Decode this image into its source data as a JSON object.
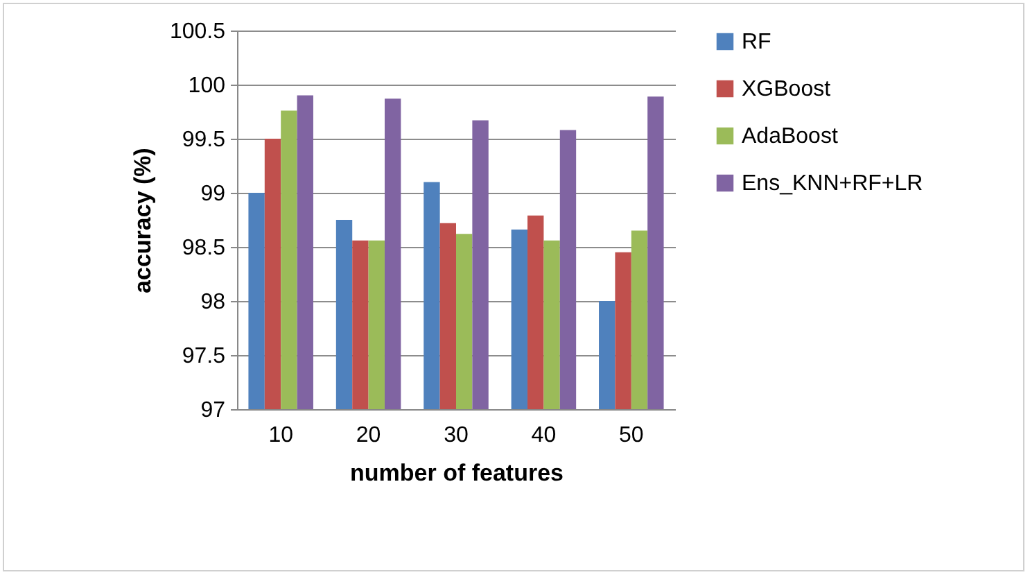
{
  "chart_data": {
    "type": "bar",
    "xlabel": "number of features",
    "ylabel": "accuracy (%)",
    "categories": [
      "10",
      "20",
      "30",
      "40",
      "50"
    ],
    "series": [
      {
        "name": "RF",
        "color": "#4f81bd",
        "values": [
          99.0,
          98.75,
          99.1,
          98.66,
          98.0
        ]
      },
      {
        "name": "XGBoost",
        "color": "#c0504d",
        "values": [
          99.5,
          98.56,
          98.72,
          98.79,
          98.45
        ]
      },
      {
        "name": "AdaBoost",
        "color": "#9bbb59",
        "values": [
          99.76,
          98.56,
          98.62,
          98.56,
          98.65
        ]
      },
      {
        "name": "Ens_KNN+RF+LR",
        "color": "#8064a2",
        "values": [
          99.9,
          99.87,
          99.67,
          99.58,
          99.89
        ]
      }
    ],
    "ylim": [
      97,
      100.5
    ],
    "yticks": [
      97,
      97.5,
      98,
      98.5,
      99,
      99.5,
      100,
      100.5
    ],
    "grid": "y",
    "legend": "right"
  }
}
